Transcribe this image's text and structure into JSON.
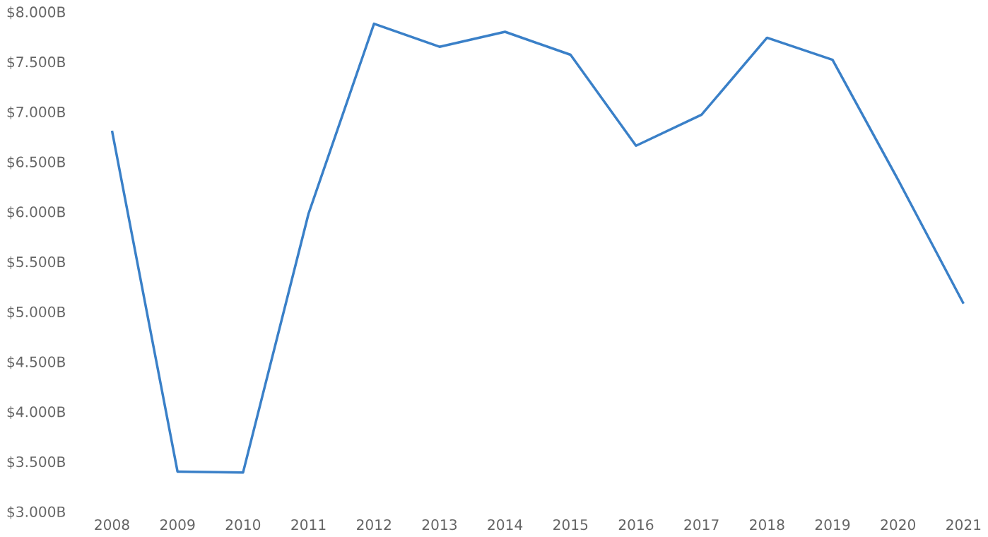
{
  "chart_data": {
    "type": "line",
    "categories": [
      "2008",
      "2009",
      "2010",
      "2011",
      "2012",
      "2013",
      "2014",
      "2015",
      "2016",
      "2017",
      "2018",
      "2019",
      "2020",
      "2021"
    ],
    "series": [
      {
        "color": "#3a80c8",
        "values": [
          6.82,
          3.41,
          3.4,
          5.99,
          7.89,
          7.66,
          7.81,
          7.58,
          6.67,
          6.98,
          7.75,
          7.53,
          6.33,
          5.09
        ]
      }
    ],
    "ylim": [
      3,
      8
    ],
    "yticks": [
      {
        "value": 3,
        "label": "$3.000B"
      },
      {
        "value": 3.5,
        "label": "$3.500B"
      },
      {
        "value": 4,
        "label": "$4.000B"
      },
      {
        "value": 4.5,
        "label": "$4.500B"
      },
      {
        "value": 5,
        "label": "$5.000B"
      },
      {
        "value": 5.5,
        "label": "$5.500B"
      },
      {
        "value": 6,
        "label": "$6.000B"
      },
      {
        "value": 6.5,
        "label": "$6.500B"
      },
      {
        "value": 7,
        "label": "$7.000B"
      },
      {
        "value": 7.5,
        "label": "$7.500B"
      },
      {
        "value": 8,
        "label": "$8.000B"
      }
    ],
    "grid": false,
    "legend": false,
    "marker": "none",
    "line_style": "solid"
  }
}
